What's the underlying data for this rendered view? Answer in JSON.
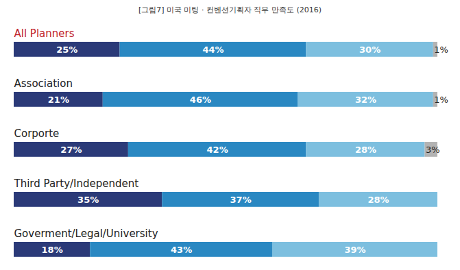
{
  "chart_data": {
    "type": "bar",
    "title": "[그림7] 미국 미팅 · 컨벤션기획자 직무 만족도 (2016)",
    "orientation": "horizontal",
    "stacked": true,
    "data_labels": true,
    "tick_labels": false,
    "categories": [
      "All Planners",
      "Association",
      "Corporte",
      "Third Party/Independent",
      "Goverment/Legal/University"
    ],
    "xlim": [
      0,
      100
    ],
    "series": [
      {
        "color": "#2b3a78",
        "values": [
          25,
          21,
          27,
          35,
          18
        ],
        "value_labels": [
          "25%",
          "21%",
          "27%",
          "35%",
          "18%"
        ]
      },
      {
        "color": "#2a88c2",
        "values": [
          44,
          46,
          42,
          37,
          43
        ],
        "value_labels": [
          "44%",
          "46%",
          "42%",
          "37%",
          "43%"
        ]
      },
      {
        "color": "#7dbfdf",
        "values": [
          30,
          32,
          28,
          28,
          39
        ],
        "value_labels": [
          "30%",
          "32%",
          "28%",
          "28%",
          "39%"
        ]
      },
      {
        "color": "#b3b3b3",
        "values": [
          1,
          1,
          3,
          null,
          null
        ],
        "value_labels": [
          "1%",
          "1%",
          "3%",
          null,
          null
        ]
      }
    ]
  }
}
